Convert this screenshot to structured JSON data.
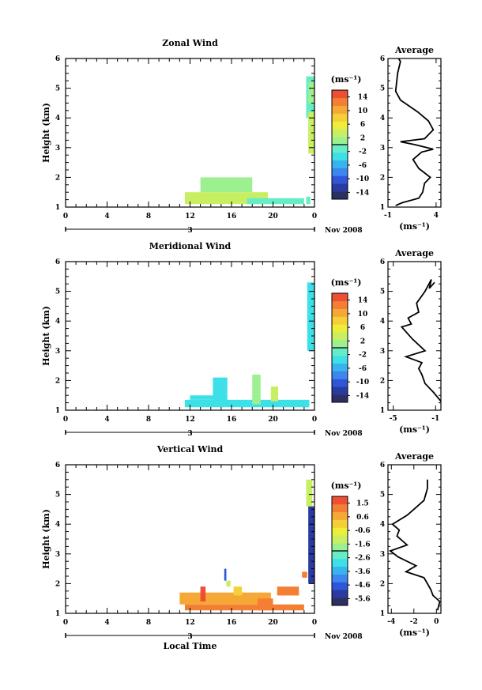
{
  "chart_data": [
    {
      "type": "heatmap",
      "title": "Zonal Wind",
      "ylabel": "Height (km)",
      "x_ticks": [
        "0",
        "4",
        "8",
        "12",
        "16",
        "20",
        "0"
      ],
      "y_ticks": [
        "1",
        "2",
        "3",
        "4",
        "5",
        "6"
      ],
      "xlim": [
        0,
        24
      ],
      "ylim": [
        1,
        6
      ],
      "date_label": "3",
      "month_label": "Nov 2008",
      "colorbar": {
        "unit": "(ms⁻¹)",
        "ticks": [
          "14",
          "10",
          "6",
          "2",
          "-2",
          "-6",
          "-10",
          "-14"
        ],
        "range": [
          -16,
          16
        ]
      },
      "profile": {
        "title": "Average",
        "xlabel": "(ms⁻¹)",
        "x_ticks": [
          "-1",
          "4"
        ],
        "xlim": [
          -1,
          4.5
        ],
        "y_ticks": [
          "1",
          "2",
          "3",
          "4",
          "5",
          "6"
        ],
        "points": [
          [
            -0.2,
            1.05
          ],
          [
            0.5,
            1.15
          ],
          [
            2.2,
            1.3
          ],
          [
            2.6,
            1.5
          ],
          [
            2.8,
            1.8
          ],
          [
            3.4,
            2.0
          ],
          [
            2.2,
            2.3
          ],
          [
            1.6,
            2.6
          ],
          [
            2.5,
            2.85
          ],
          [
            3.7,
            2.95
          ],
          [
            1.8,
            3.1
          ],
          [
            0.3,
            3.2
          ],
          [
            2.8,
            3.3
          ],
          [
            3.7,
            3.6
          ],
          [
            3.2,
            3.9
          ],
          [
            2.1,
            4.2
          ],
          [
            0.3,
            4.6
          ],
          [
            -0.2,
            4.9
          ],
          [
            0.0,
            5.5
          ],
          [
            0.3,
            5.9
          ],
          [
            0.1,
            6.0
          ]
        ]
      },
      "regions": [
        {
          "x": [
            11.5,
            19.5
          ],
          "y": [
            1.1,
            1.5
          ],
          "value": 4
        },
        {
          "x": [
            13.0,
            18.0
          ],
          "y": [
            1.5,
            2.0
          ],
          "value": 2
        },
        {
          "x": [
            17.5,
            23.0
          ],
          "y": [
            1.1,
            1.3
          ],
          "value": -1
        },
        {
          "x": [
            23.2,
            23.6
          ],
          "y": [
            1.1,
            1.35
          ],
          "value": -2
        },
        {
          "x": [
            23.2,
            24.0
          ],
          "y": [
            4.0,
            5.4
          ],
          "value": -2
        },
        {
          "x": [
            23.4,
            24.0
          ],
          "y": [
            2.8,
            4.2
          ],
          "value": 4
        },
        {
          "x": [
            23.4,
            24.0
          ],
          "y": [
            4.5,
            5.2
          ],
          "value": 0
        }
      ]
    },
    {
      "type": "heatmap",
      "title": "Meridional Wind",
      "ylabel": "Height (km)",
      "x_ticks": [
        "0",
        "4",
        "8",
        "12",
        "16",
        "20",
        "0"
      ],
      "y_ticks": [
        "1",
        "2",
        "3",
        "4",
        "5",
        "6"
      ],
      "xlim": [
        0,
        24
      ],
      "ylim": [
        1,
        6
      ],
      "date_label": "3",
      "month_label": "Nov 2008",
      "colorbar": {
        "unit": "(ms⁻¹)",
        "ticks": [
          "14",
          "10",
          "6",
          "2",
          "-2",
          "-6",
          "-10",
          "-14"
        ],
        "range": [
          -16,
          16
        ]
      },
      "profile": {
        "title": "Average",
        "xlabel": "(ms⁻¹)",
        "x_ticks": [
          "-5",
          "-1"
        ],
        "xlim": [
          -5.5,
          -0.5
        ],
        "y_ticks": [
          "1",
          "2",
          "3",
          "4",
          "5",
          "6"
        ],
        "points": [
          [
            -0.5,
            1.3
          ],
          [
            -1.2,
            1.6
          ],
          [
            -2.0,
            1.9
          ],
          [
            -2.3,
            2.2
          ],
          [
            -2.6,
            2.4
          ],
          [
            -2.3,
            2.6
          ],
          [
            -3.8,
            2.8
          ],
          [
            -2.0,
            3.0
          ],
          [
            -3.2,
            3.4
          ],
          [
            -4.2,
            3.8
          ],
          [
            -3.3,
            3.9
          ],
          [
            -3.6,
            4.1
          ],
          [
            -2.6,
            4.3
          ],
          [
            -2.8,
            4.6
          ],
          [
            -2.0,
            5.0
          ],
          [
            -1.7,
            5.2
          ],
          [
            -1.4,
            5.4
          ],
          [
            -1.6,
            5.1
          ],
          [
            -1.1,
            5.3
          ]
        ]
      },
      "regions": [
        {
          "x": [
            11.5,
            23.5
          ],
          "y": [
            1.1,
            1.35
          ],
          "value": -3
        },
        {
          "x": [
            12.0,
            14.5
          ],
          "y": [
            1.35,
            1.5
          ],
          "value": -3
        },
        {
          "x": [
            14.2,
            15.6
          ],
          "y": [
            1.2,
            2.1
          ],
          "value": -3
        },
        {
          "x": [
            18.0,
            18.8
          ],
          "y": [
            1.2,
            2.2
          ],
          "value": 2
        },
        {
          "x": [
            19.8,
            20.5
          ],
          "y": [
            1.3,
            1.8
          ],
          "value": 4
        },
        {
          "x": [
            23.0,
            23.5
          ],
          "y": [
            1.1,
            1.3
          ],
          "value": -4
        },
        {
          "x": [
            23.3,
            24.0
          ],
          "y": [
            3.0,
            5.3
          ],
          "value": -3
        }
      ]
    },
    {
      "type": "heatmap",
      "title": "Vertical Wind",
      "ylabel": "Height (km)",
      "xlabel": "Local Time",
      "x_ticks": [
        "0",
        "4",
        "8",
        "12",
        "16",
        "20",
        "0"
      ],
      "y_ticks": [
        "1",
        "2",
        "3",
        "4",
        "5",
        "6"
      ],
      "xlim": [
        0,
        24
      ],
      "ylim": [
        1,
        6
      ],
      "date_label": "3",
      "month_label": "Nov 2008",
      "colorbar": {
        "unit": "(ms⁻¹)",
        "ticks": [
          "1.5",
          "0.6",
          "-0.6",
          "-1.6",
          "-2.6",
          "-3.6",
          "-4.6",
          "-5.6"
        ],
        "range": [
          -6.2,
          2.0
        ]
      },
      "profile": {
        "title": "Average",
        "xlabel": "(ms⁻¹)",
        "x_ticks": [
          "-4",
          "-2",
          "0"
        ],
        "xlim": [
          -4.3,
          0.4
        ],
        "y_ticks": [
          "1",
          "2",
          "3",
          "4",
          "5",
          "6"
        ],
        "points": [
          [
            0.1,
            1.1
          ],
          [
            0.3,
            1.4
          ],
          [
            -0.3,
            1.6
          ],
          [
            -0.5,
            1.8
          ],
          [
            -1.1,
            2.2
          ],
          [
            -2.7,
            2.4
          ],
          [
            -1.8,
            2.6
          ],
          [
            -3.4,
            2.9
          ],
          [
            -4.1,
            3.1
          ],
          [
            -2.6,
            3.3
          ],
          [
            -3.5,
            3.6
          ],
          [
            -3.3,
            3.8
          ],
          [
            -3.9,
            4.0
          ],
          [
            -2.6,
            4.3
          ],
          [
            -2.0,
            4.5
          ],
          [
            -1.1,
            4.8
          ],
          [
            -0.8,
            5.2
          ],
          [
            -0.8,
            5.5
          ]
        ]
      },
      "regions": [
        {
          "x": [
            11.5,
            23.0
          ],
          "y": [
            1.1,
            1.3
          ],
          "value": 1.1
        },
        {
          "x": [
            11.0,
            19.8
          ],
          "y": [
            1.3,
            1.7
          ],
          "value": 0.6
        },
        {
          "x": [
            18.5,
            20.0
          ],
          "y": [
            1.1,
            1.5
          ],
          "value": 1.2
        },
        {
          "x": [
            13.0,
            13.5
          ],
          "y": [
            1.4,
            1.9
          ],
          "value": 1.5
        },
        {
          "x": [
            15.3,
            15.5
          ],
          "y": [
            2.1,
            2.5
          ],
          "value": -5.0
        },
        {
          "x": [
            15.5,
            15.9
          ],
          "y": [
            1.9,
            2.1
          ],
          "value": -1.5
        },
        {
          "x": [
            16.2,
            17.0
          ],
          "y": [
            1.6,
            1.9
          ],
          "value": 0.0
        },
        {
          "x": [
            20.4,
            22.5
          ],
          "y": [
            1.6,
            1.9
          ],
          "value": 1.0
        },
        {
          "x": [
            22.8,
            23.3
          ],
          "y": [
            2.2,
            2.4
          ],
          "value": 1.0
        },
        {
          "x": [
            23.4,
            24.0
          ],
          "y": [
            2.0,
            4.6
          ],
          "value": -5.2
        },
        {
          "x": [
            23.2,
            23.8
          ],
          "y": [
            4.6,
            5.5
          ],
          "value": -1.5
        }
      ]
    }
  ]
}
